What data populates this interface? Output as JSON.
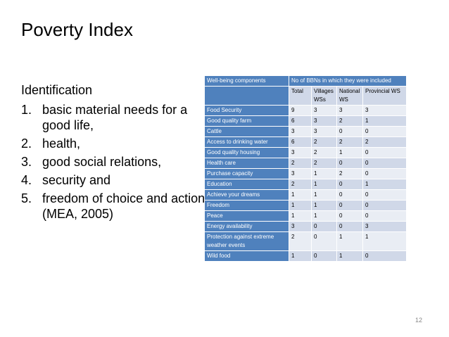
{
  "slide": {
    "title": "Poverty Index",
    "intro": "Identification",
    "items": [
      {
        "num": "1.",
        "text": "basic material needs for a good life,"
      },
      {
        "num": "2.",
        "text": "health,"
      },
      {
        "num": "3.",
        "text": "good social relations,"
      },
      {
        "num": "4.",
        "text": "security and"
      },
      {
        "num": "5.",
        "text": "freedom of choice and action (MEA, 2005)"
      }
    ],
    "page_number": "12"
  },
  "table": {
    "header_left": "Well-being components",
    "header_right": "No of BBNs in which they were included",
    "subheaders": [
      "Total",
      "Villages WSs",
      "National WS",
      "Provincial WS"
    ],
    "rows": [
      {
        "label": "Food Security",
        "values": [
          "9",
          "3",
          "3",
          "3"
        ]
      },
      {
        "label": "Good quality farm",
        "values": [
          "6",
          "3",
          "2",
          "1"
        ]
      },
      {
        "label": "Cattle",
        "values": [
          "3",
          "3",
          "0",
          "0"
        ]
      },
      {
        "label": "Access to drinking water",
        "values": [
          "6",
          "2",
          "2",
          "2"
        ]
      },
      {
        "label": "Good quality housing",
        "values": [
          "3",
          "2",
          "1",
          "0"
        ]
      },
      {
        "label": "Health care",
        "values": [
          "2",
          "2",
          "0",
          "0"
        ]
      },
      {
        "label": "Purchase capacity",
        "values": [
          "3",
          "1",
          "2",
          "0"
        ]
      },
      {
        "label": "Education",
        "values": [
          "2",
          "1",
          "0",
          "1"
        ]
      },
      {
        "label": "Achieve your dreams",
        "values": [
          "1",
          "1",
          "0",
          "0"
        ]
      },
      {
        "label": "Freedom",
        "values": [
          "1",
          "1",
          "0",
          "0"
        ]
      },
      {
        "label": "Peace",
        "values": [
          "1",
          "1",
          "0",
          "0"
        ]
      },
      {
        "label": "Energy availability",
        "values": [
          "3",
          "0",
          "0",
          "3"
        ]
      },
      {
        "label": "Protection against extreme weather events",
        "values": [
          "2",
          "0",
          "1",
          "1"
        ]
      },
      {
        "label": "Wild food",
        "values": [
          "1",
          "0",
          "1",
          "0"
        ]
      }
    ]
  }
}
